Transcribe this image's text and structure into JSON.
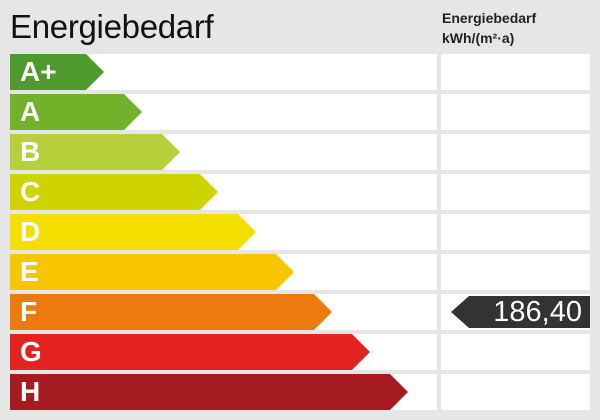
{
  "title": "Energiebedarf",
  "unit_label_line1": "Energiebedarf",
  "unit_label_line2": "kWh/(m²·a)",
  "classes": [
    {
      "label": "A+",
      "color": "#4f9a2c"
    },
    {
      "label": "A",
      "color": "#72b12a"
    },
    {
      "label": "B",
      "color": "#b8cf3c"
    },
    {
      "label": "C",
      "color": "#cfd400"
    },
    {
      "label": "D",
      "color": "#f4df00"
    },
    {
      "label": "E",
      "color": "#f8c600"
    },
    {
      "label": "F",
      "color": "#ec7a0e"
    },
    {
      "label": "G",
      "color": "#e2231f"
    },
    {
      "label": "H",
      "color": "#a61b22"
    }
  ],
  "value": {
    "text": "186,40",
    "class": "F",
    "color": "#333333"
  }
}
